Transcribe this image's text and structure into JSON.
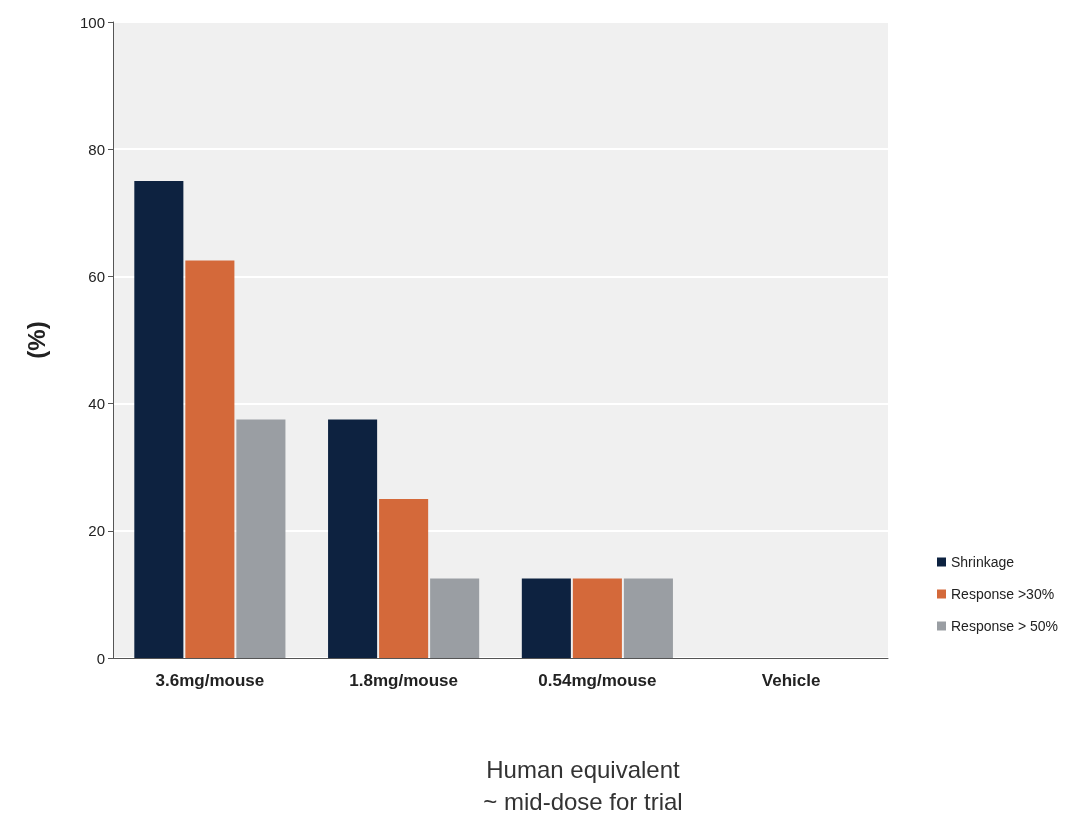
{
  "chart_data": {
    "type": "bar",
    "xlabel": "Human equivalent\n~ mid-dose for trial",
    "ylabel": "(%)",
    "categories": [
      "3.6mg/mouse",
      "1.8mg/mouse",
      "0.54mg/mouse",
      "Vehicle"
    ],
    "series": [
      {
        "name": "Shrinkage",
        "color": "#0d2240",
        "values": [
          75,
          37.5,
          12.5,
          0
        ]
      },
      {
        "name": "Response >30%",
        "color": "#d4693a",
        "values": [
          62.5,
          25,
          12.5,
          0
        ]
      },
      {
        "name": "Response > 50%",
        "color": "#9a9ea3",
        "values": [
          37.5,
          12.5,
          12.5,
          0
        ]
      }
    ],
    "ylim": [
      0,
      100
    ],
    "yticks": [
      0,
      20,
      40,
      60,
      80,
      100
    ],
    "grid": "y",
    "legend": "right"
  }
}
